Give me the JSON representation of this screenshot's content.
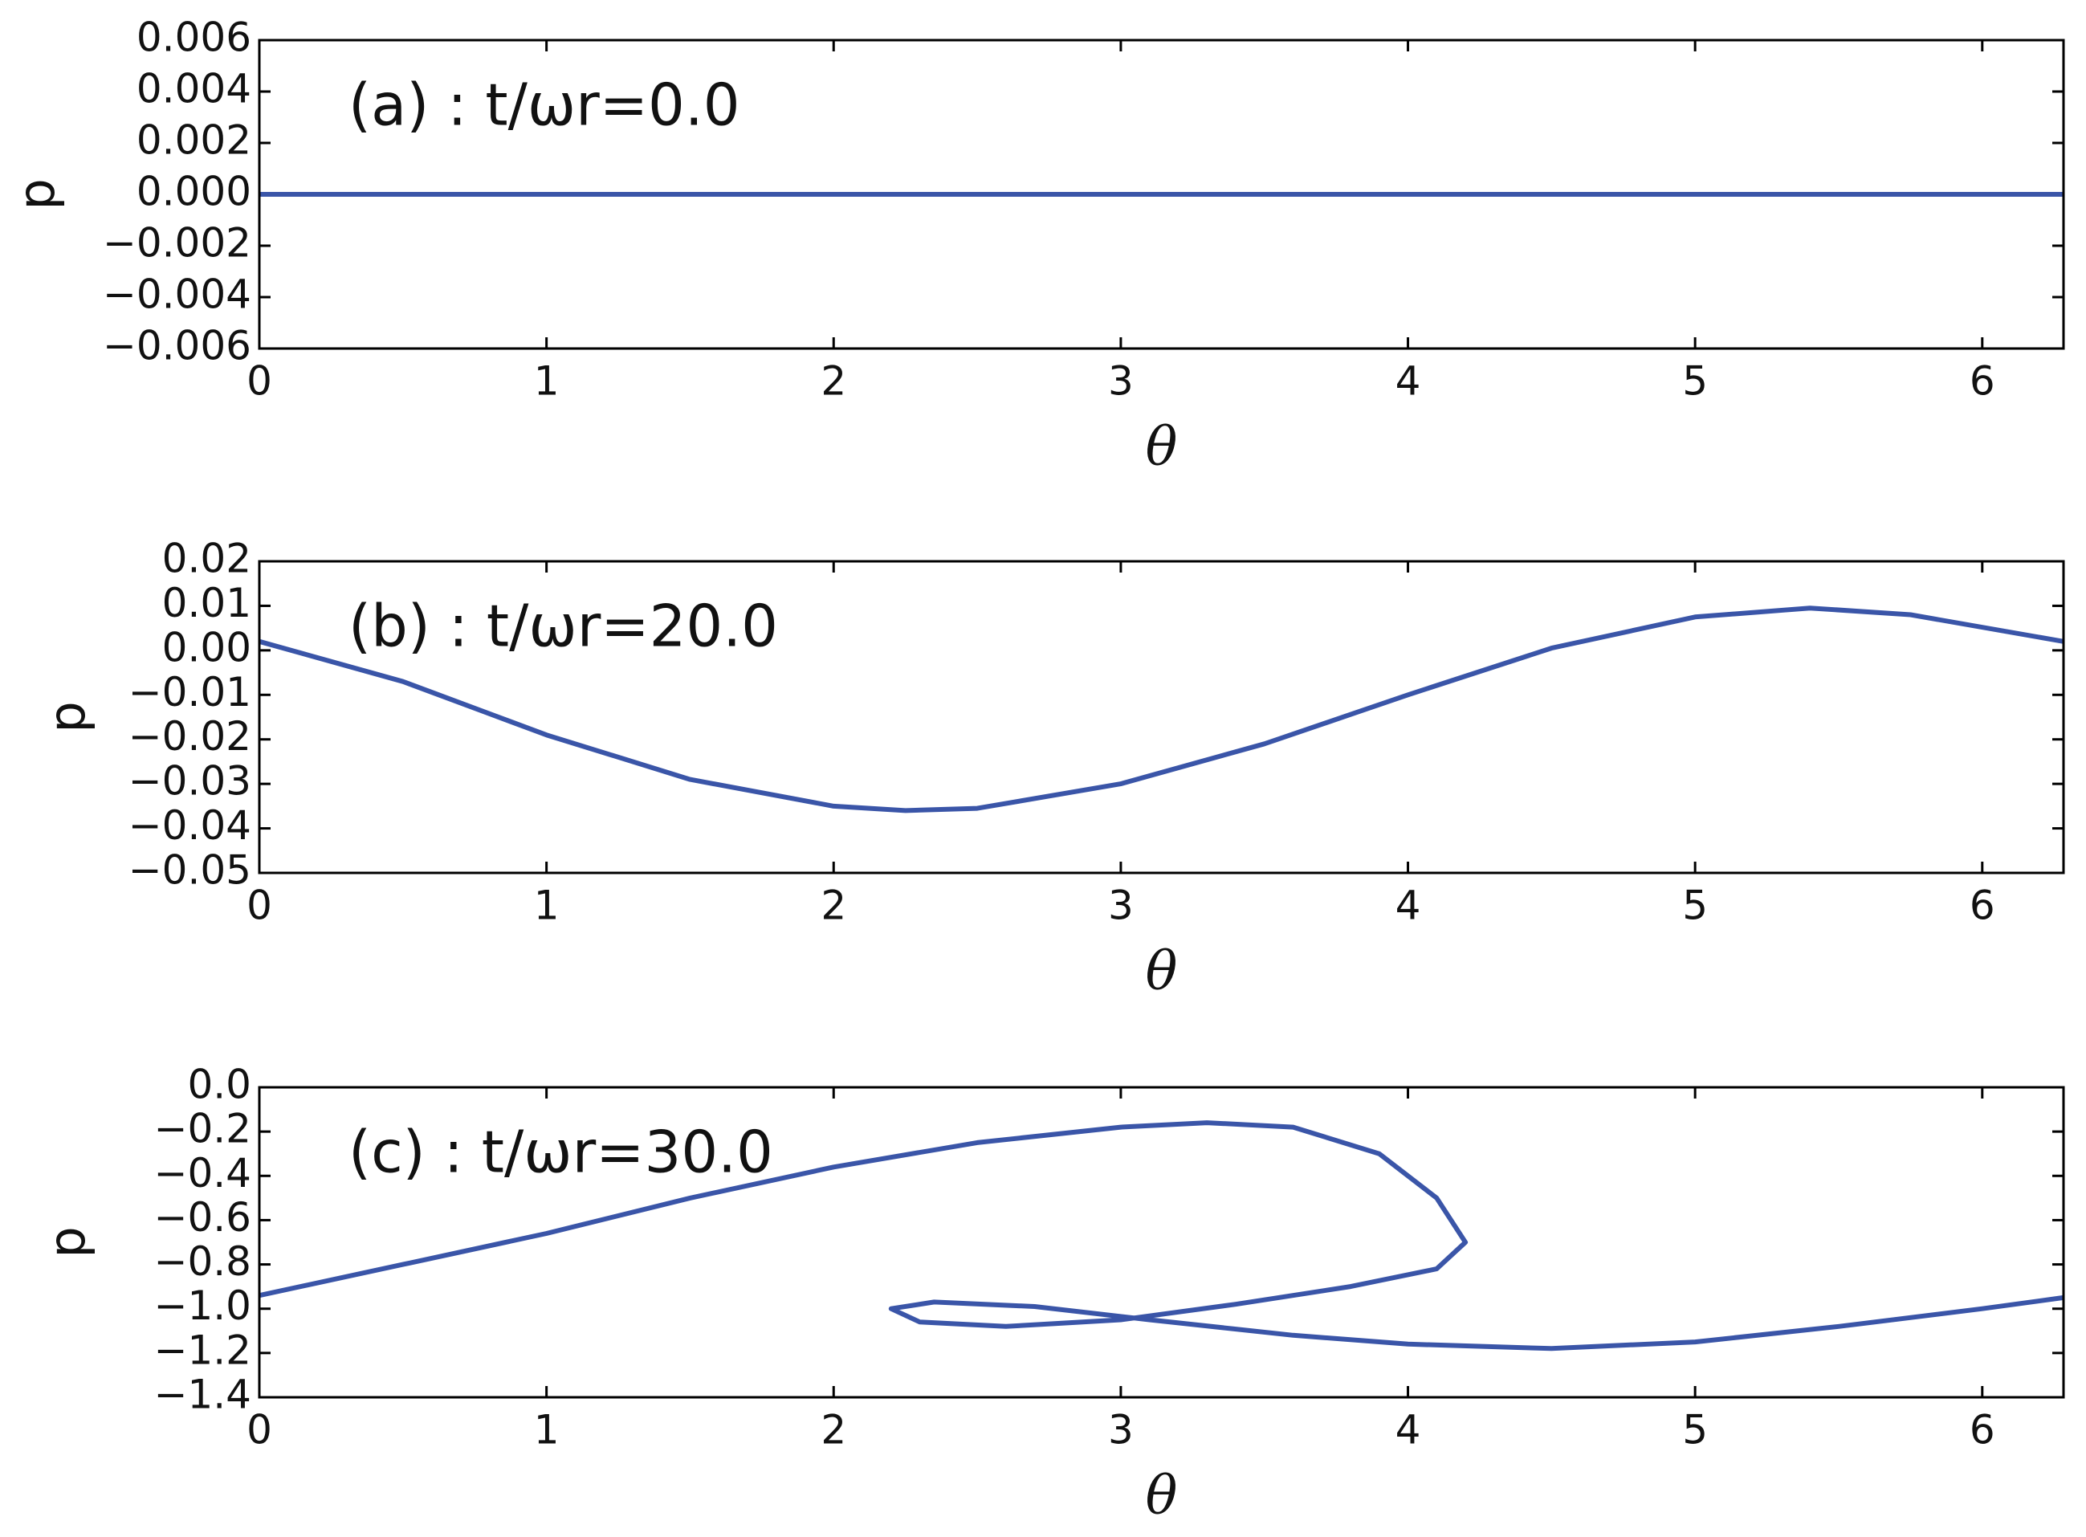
{
  "chart_data": [
    {
      "type": "line",
      "annotation": "(a) : t/ωr=0.0",
      "x_label": "θ",
      "y_label": "p",
      "x": [
        0,
        1,
        2,
        3,
        4,
        5,
        6,
        6.283
      ],
      "series": [
        {
          "color": "#3a55a8",
          "values": [
            0,
            0,
            0,
            0,
            0,
            0,
            0,
            0
          ]
        }
      ],
      "xlim": [
        0,
        6.283
      ],
      "ylim": [
        -0.006,
        0.006
      ],
      "xticks": [
        0,
        1,
        2,
        3,
        4,
        5,
        6
      ],
      "yticks": [
        {
          "value": -0.006,
          "label": "−0.006"
        },
        {
          "value": -0.004,
          "label": "−0.004"
        },
        {
          "value": -0.002,
          "label": "−0.002"
        },
        {
          "value": 0,
          "label": "0.000"
        },
        0.002,
        0.004,
        0.006
      ]
    },
    {
      "type": "line",
      "annotation": "(b) : t/ωr=20.0",
      "x_label": "θ",
      "y_label": "p",
      "x": [
        0,
        0.5,
        1,
        1.5,
        2,
        2.25,
        2.5,
        3,
        3.5,
        4,
        4.5,
        5,
        5.4,
        5.75,
        6.283
      ],
      "series": [
        {
          "color": "#3a55a8",
          "values": [
            0.002,
            -0.007,
            -0.019,
            -0.029,
            -0.035,
            -0.036,
            -0.0355,
            -0.03,
            -0.021,
            -0.01,
            0.0005,
            0.0075,
            0.0095,
            0.008,
            0.002
          ]
        }
      ],
      "xlim": [
        0,
        6.283
      ],
      "ylim": [
        -0.05,
        0.02
      ],
      "xticks": [
        0,
        1,
        2,
        3,
        4,
        5,
        6
      ],
      "yticks": [
        {
          "value": -0.05,
          "label": "−0.05"
        },
        {
          "value": -0.04,
          "label": "−0.04"
        },
        {
          "value": -0.03,
          "label": "−0.03"
        },
        {
          "value": -0.02,
          "label": "−0.02"
        },
        {
          "value": -0.01,
          "label": "−0.01"
        },
        {
          "value": 0,
          "label": "0.00"
        },
        0.01,
        0.02
      ]
    },
    {
      "type": "line",
      "annotation": "(c) : t/ωr=30.0",
      "x_label": "θ",
      "y_label": "p",
      "x": [
        0,
        0.5,
        1,
        1.5,
        2,
        2.5,
        3,
        3.3,
        3.6,
        3.9,
        4.1,
        4.2,
        4.1,
        3.8,
        3.4,
        3.0,
        2.6,
        2.3,
        2.2,
        2.35,
        2.7,
        3.1,
        3.6,
        4.0,
        4.5,
        5.0,
        5.5,
        6.0,
        6.283
      ],
      "series": [
        {
          "color": "#3a55a8",
          "values": [
            -0.94,
            -0.8,
            -0.66,
            -0.5,
            -0.36,
            -0.25,
            -0.18,
            -0.16,
            -0.18,
            -0.3,
            -0.5,
            -0.7,
            -0.82,
            -0.9,
            -0.98,
            -1.05,
            -1.08,
            -1.06,
            -1.0,
            -0.97,
            -0.99,
            -1.05,
            -1.12,
            -1.16,
            -1.18,
            -1.15,
            -1.08,
            -1.0,
            -0.95
          ]
        }
      ],
      "xlim": [
        0,
        6.283
      ],
      "ylim": [
        -1.4,
        0
      ],
      "xticks": [
        0,
        1,
        2,
        3,
        4,
        5,
        6
      ],
      "yticks": [
        {
          "value": -1.4,
          "label": "−1.4"
        },
        {
          "value": -1.2,
          "label": "−1.2"
        },
        {
          "value": -1.0,
          "label": "−1.0"
        },
        {
          "value": -0.8,
          "label": "−0.8"
        },
        {
          "value": -0.6,
          "label": "−0.6"
        },
        {
          "value": -0.4,
          "label": "−0.4"
        },
        {
          "value": -0.2,
          "label": "−0.2"
        },
        {
          "value": 0,
          "label": "0.0"
        }
      ]
    }
  ]
}
